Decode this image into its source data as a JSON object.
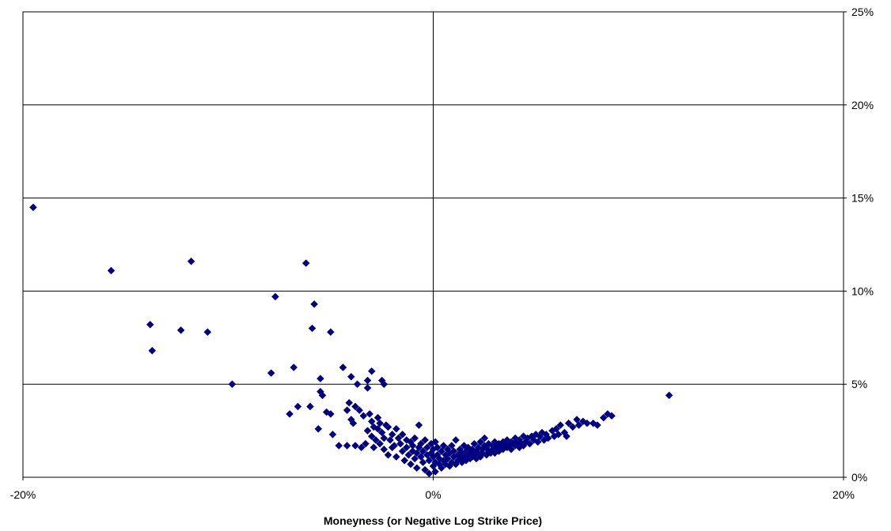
{
  "chart_data": {
    "type": "scatter",
    "title": "",
    "xlabel": "Moneyness (or Negative Log Strike Price)",
    "ylabel": "",
    "xlim": [
      -0.2,
      0.2
    ],
    "ylim": [
      0,
      0.25
    ],
    "x_ticks": [
      -0.2,
      0,
      0.2
    ],
    "x_tick_labels": [
      "-20%",
      "0%",
      "20%"
    ],
    "y_ticks": [
      0,
      0.05,
      0.1,
      0.15,
      0.2,
      0.25
    ],
    "y_tick_labels": [
      "0%",
      "5%",
      "10%",
      "15%",
      "20%",
      "25%"
    ],
    "y_axis_side": "right",
    "grid": "horizontal gridlines plus vertical line at x=0",
    "marker": "diamond",
    "marker_color": "#000080",
    "points": [
      [
        -0.195,
        0.145
      ],
      [
        -0.157,
        0.111
      ],
      [
        -0.138,
        0.082
      ],
      [
        -0.137,
        0.068
      ],
      [
        -0.123,
        0.079
      ],
      [
        -0.118,
        0.116
      ],
      [
        -0.11,
        0.078
      ],
      [
        -0.098,
        0.05
      ],
      [
        -0.079,
        0.056
      ],
      [
        -0.077,
        0.097
      ],
      [
        -0.07,
        0.034
      ],
      [
        -0.068,
        0.059
      ],
      [
        -0.066,
        0.038
      ],
      [
        -0.062,
        0.115
      ],
      [
        -0.059,
        0.08
      ],
      [
        -0.058,
        0.093
      ],
      [
        -0.06,
        0.038
      ],
      [
        -0.056,
        0.026
      ],
      [
        -0.055,
        0.046
      ],
      [
        -0.055,
        0.053
      ],
      [
        -0.054,
        0.044
      ],
      [
        -0.052,
        0.035
      ],
      [
        -0.05,
        0.078
      ],
      [
        -0.05,
        0.034
      ],
      [
        -0.049,
        0.023
      ],
      [
        -0.046,
        0.017
      ],
      [
        -0.044,
        0.059
      ],
      [
        -0.042,
        0.017
      ],
      [
        -0.042,
        0.036
      ],
      [
        -0.041,
        0.04
      ],
      [
        -0.04,
        0.054
      ],
      [
        -0.04,
        0.031
      ],
      [
        -0.039,
        0.029
      ],
      [
        -0.038,
        0.017
      ],
      [
        -0.038,
        0.038
      ],
      [
        -0.037,
        0.05
      ],
      [
        -0.036,
        0.036
      ],
      [
        -0.035,
        0.016
      ],
      [
        -0.034,
        0.033
      ],
      [
        -0.033,
        0.018
      ],
      [
        -0.032,
        0.052
      ],
      [
        -0.032,
        0.025
      ],
      [
        -0.032,
        0.048
      ],
      [
        -0.031,
        0.034
      ],
      [
        -0.03,
        0.057
      ],
      [
        -0.03,
        0.03
      ],
      [
        -0.03,
        0.022
      ],
      [
        -0.029,
        0.027
      ],
      [
        -0.029,
        0.016
      ],
      [
        -0.028,
        0.02
      ],
      [
        -0.027,
        0.032
      ],
      [
        -0.027,
        0.026
      ],
      [
        -0.026,
        0.029
      ],
      [
        -0.026,
        0.018
      ],
      [
        -0.025,
        0.024
      ],
      [
        -0.025,
        0.052
      ],
      [
        -0.024,
        0.015
      ],
      [
        -0.024,
        0.021
      ],
      [
        -0.024,
        0.05
      ],
      [
        -0.023,
        0.028
      ],
      [
        -0.022,
        0.027
      ],
      [
        -0.022,
        0.012
      ],
      [
        -0.021,
        0.02
      ],
      [
        -0.02,
        0.016
      ],
      [
        -0.02,
        0.023
      ],
      [
        -0.019,
        0.017
      ],
      [
        -0.018,
        0.026
      ],
      [
        -0.018,
        0.011
      ],
      [
        -0.017,
        0.021
      ],
      [
        -0.016,
        0.018
      ],
      [
        -0.015,
        0.014
      ],
      [
        -0.015,
        0.023
      ],
      [
        -0.014,
        0.009
      ],
      [
        -0.013,
        0.016
      ],
      [
        -0.013,
        0.02
      ],
      [
        -0.012,
        0.012
      ],
      [
        -0.011,
        0.019
      ],
      [
        -0.011,
        0.007
      ],
      [
        -0.01,
        0.014
      ],
      [
        -0.01,
        0.017
      ],
      [
        -0.009,
        0.021
      ],
      [
        -0.009,
        0.01
      ],
      [
        -0.008,
        0.013
      ],
      [
        -0.008,
        0.005
      ],
      [
        -0.007,
        0.016
      ],
      [
        -0.007,
        0.028
      ],
      [
        -0.006,
        0.011
      ],
      [
        -0.006,
        0.018
      ],
      [
        -0.005,
        0.008
      ],
      [
        -0.005,
        0.014
      ],
      [
        -0.004,
        0.02
      ],
      [
        -0.004,
        0.004
      ],
      [
        -0.003,
        0.012
      ],
      [
        -0.003,
        0.016
      ],
      [
        -0.002,
        0.009
      ],
      [
        -0.002,
        0.002
      ],
      [
        -0.001,
        0.013
      ],
      [
        -0.001,
        0.018
      ],
      [
        0.0,
        0.006
      ],
      [
        0.0,
        0.011
      ],
      [
        0.0,
        0.015
      ],
      [
        0.001,
        0.008
      ],
      [
        0.001,
        0.019
      ],
      [
        0.001,
        0.003
      ],
      [
        0.002,
        0.012
      ],
      [
        0.002,
        0.016
      ],
      [
        0.003,
        0.007
      ],
      [
        0.003,
        0.01
      ],
      [
        0.004,
        0.014
      ],
      [
        0.004,
        0.005
      ],
      [
        0.005,
        0.017
      ],
      [
        0.005,
        0.009
      ],
      [
        0.006,
        0.012
      ],
      [
        0.006,
        0.007
      ],
      [
        0.007,
        0.015
      ],
      [
        0.007,
        0.01
      ],
      [
        0.008,
        0.006
      ],
      [
        0.008,
        0.013
      ],
      [
        0.009,
        0.017
      ],
      [
        0.009,
        0.008
      ],
      [
        0.01,
        0.011
      ],
      [
        0.01,
        0.014
      ],
      [
        0.011,
        0.007
      ],
      [
        0.011,
        0.02
      ],
      [
        0.012,
        0.012
      ],
      [
        0.012,
        0.009
      ],
      [
        0.013,
        0.015
      ],
      [
        0.013,
        0.01
      ],
      [
        0.014,
        0.008
      ],
      [
        0.014,
        0.013
      ],
      [
        0.015,
        0.017
      ],
      [
        0.015,
        0.011
      ],
      [
        0.016,
        0.009
      ],
      [
        0.016,
        0.014
      ],
      [
        0.017,
        0.012
      ],
      [
        0.017,
        0.016
      ],
      [
        0.018,
        0.01
      ],
      [
        0.018,
        0.013
      ],
      [
        0.019,
        0.015
      ],
      [
        0.019,
        0.011
      ],
      [
        0.02,
        0.018
      ],
      [
        0.02,
        0.012
      ],
      [
        0.021,
        0.014
      ],
      [
        0.021,
        0.01
      ],
      [
        0.022,
        0.016
      ],
      [
        0.022,
        0.013
      ],
      [
        0.023,
        0.019
      ],
      [
        0.023,
        0.011
      ],
      [
        0.024,
        0.015
      ],
      [
        0.024,
        0.013
      ],
      [
        0.025,
        0.017
      ],
      [
        0.025,
        0.021
      ],
      [
        0.026,
        0.012
      ],
      [
        0.026,
        0.016
      ],
      [
        0.027,
        0.014
      ],
      [
        0.027,
        0.018
      ],
      [
        0.028,
        0.013
      ],
      [
        0.029,
        0.017
      ],
      [
        0.029,
        0.015
      ],
      [
        0.03,
        0.019
      ],
      [
        0.03,
        0.013
      ],
      [
        0.031,
        0.016
      ],
      [
        0.032,
        0.018
      ],
      [
        0.032,
        0.014
      ],
      [
        0.033,
        0.017
      ],
      [
        0.034,
        0.019
      ],
      [
        0.034,
        0.015
      ],
      [
        0.035,
        0.018
      ],
      [
        0.036,
        0.016
      ],
      [
        0.036,
        0.02
      ],
      [
        0.037,
        0.017
      ],
      [
        0.038,
        0.019
      ],
      [
        0.038,
        0.015
      ],
      [
        0.039,
        0.018
      ],
      [
        0.04,
        0.021
      ],
      [
        0.04,
        0.017
      ],
      [
        0.041,
        0.019
      ],
      [
        0.042,
        0.016
      ],
      [
        0.042,
        0.02
      ],
      [
        0.043,
        0.018
      ],
      [
        0.044,
        0.022
      ],
      [
        0.044,
        0.017
      ],
      [
        0.045,
        0.019
      ],
      [
        0.046,
        0.021
      ],
      [
        0.047,
        0.018
      ],
      [
        0.048,
        0.022
      ],
      [
        0.049,
        0.02
      ],
      [
        0.05,
        0.023
      ],
      [
        0.051,
        0.019
      ],
      [
        0.052,
        0.022
      ],
      [
        0.053,
        0.024
      ],
      [
        0.054,
        0.02
      ],
      [
        0.055,
        0.023
      ],
      [
        0.056,
        0.021
      ],
      [
        0.058,
        0.025
      ],
      [
        0.059,
        0.022
      ],
      [
        0.06,
        0.026
      ],
      [
        0.061,
        0.023
      ],
      [
        0.062,
        0.028
      ],
      [
        0.064,
        0.024
      ],
      [
        0.065,
        0.022
      ],
      [
        0.066,
        0.029
      ],
      [
        0.068,
        0.027
      ],
      [
        0.07,
        0.031
      ],
      [
        0.071,
        0.028
      ],
      [
        0.073,
        0.03
      ],
      [
        0.075,
        0.029
      ],
      [
        0.078,
        0.029
      ],
      [
        0.08,
        0.028
      ],
      [
        0.083,
        0.032
      ],
      [
        0.085,
        0.034
      ],
      [
        0.087,
        0.033
      ],
      [
        0.115,
        0.044
      ]
    ]
  }
}
